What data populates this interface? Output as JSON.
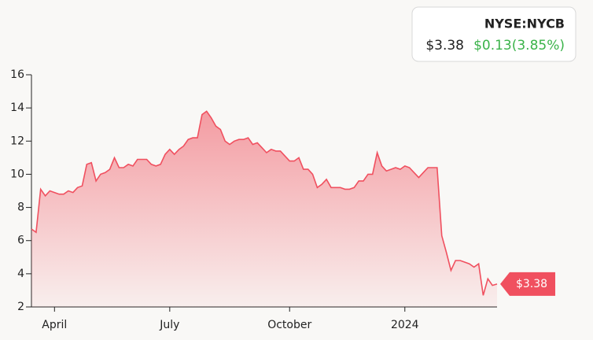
{
  "header": {
    "symbol": "NYSE:NYCB",
    "price": "$3.38",
    "change": "$0.13(3.85%)"
  },
  "chart_data": {
    "type": "area",
    "color": "#f0505f",
    "values": [
      6.7,
      6.5,
      9.1,
      8.7,
      9.0,
      8.9,
      8.8,
      8.8,
      9.0,
      8.9,
      9.2,
      9.3,
      10.6,
      10.7,
      9.6,
      10.0,
      10.1,
      10.3,
      11.0,
      10.4,
      10.4,
      10.6,
      10.5,
      10.9,
      10.9,
      10.9,
      10.6,
      10.5,
      10.6,
      11.2,
      11.5,
      11.2,
      11.5,
      11.7,
      12.1,
      12.2,
      12.2,
      13.6,
      13.8,
      13.4,
      12.9,
      12.7,
      12.0,
      11.8,
      12.0,
      12.1,
      12.1,
      12.2,
      11.8,
      11.9,
      11.6,
      11.3,
      11.5,
      11.4,
      11.4,
      11.1,
      10.8,
      10.8,
      11.0,
      10.3,
      10.3,
      10.0,
      9.2,
      9.4,
      9.7,
      9.2,
      9.2,
      9.2,
      9.1,
      9.1,
      9.2,
      9.6,
      9.6,
      10.0,
      10.0,
      11.3,
      10.5,
      10.2,
      10.3,
      10.4,
      10.3,
      10.5,
      10.4,
      10.1,
      9.8,
      10.1,
      10.4,
      10.4,
      10.4,
      6.3,
      5.3,
      4.2,
      4.8,
      4.8,
      4.7,
      4.6,
      4.4,
      4.6,
      2.7,
      3.7,
      3.3,
      3.38
    ],
    "xlim": [
      0,
      101
    ],
    "xticks": [
      {
        "value": 5,
        "label": "April"
      },
      {
        "value": 30,
        "label": "July"
      },
      {
        "value": 56,
        "label": "October"
      },
      {
        "value": 81,
        "label": "2024"
      }
    ],
    "ylim": [
      2,
      16
    ],
    "yticks": [
      2,
      4,
      6,
      8,
      10,
      12,
      14,
      16
    ]
  }
}
